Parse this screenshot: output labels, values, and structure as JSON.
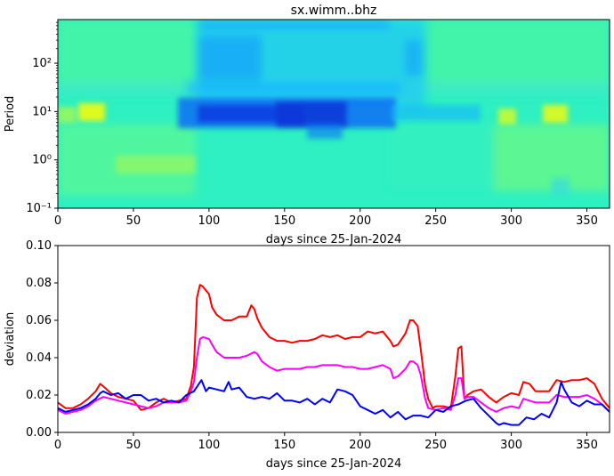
{
  "title": "sx.wimm..bhz",
  "chart_data": [
    {
      "type": "heatmap",
      "title": "sx.wimm..bhz",
      "xlabel": "days since 25-Jan-2024",
      "ylabel": "Period",
      "xlim": [
        0,
        365
      ],
      "ylim": [
        0.1,
        800
      ],
      "yscale": "log",
      "x_ticks": [
        0,
        50,
        100,
        150,
        200,
        250,
        300,
        350
      ],
      "y_ticks": [
        0.1,
        1,
        10,
        100
      ],
      "y_tick_labels": [
        "10⁻¹",
        "10⁰",
        "10¹",
        "10²"
      ],
      "colormap": "jet-like (low = blue, mid = cyan/green, high = yellow)",
      "features": [
        {
          "days": [
            92,
            242
          ],
          "periods": [
            35,
            800
          ],
          "level": "lower (blue-cyan)"
        },
        {
          "days": [
            82,
            220
          ],
          "periods": [
            4,
            20
          ],
          "level": "lowest (deep blue)"
        },
        {
          "days": [
            18,
            30
          ],
          "periods": [
            6,
            14
          ],
          "level": "high (yellow)"
        },
        {
          "days": [
            292,
            300
          ],
          "periods": [
            5,
            12
          ],
          "level": "high (yellow)"
        },
        {
          "days": [
            320,
            335
          ],
          "periods": [
            6,
            14
          ],
          "level": "high (yellow)"
        }
      ]
    },
    {
      "type": "line",
      "xlabel": "days since 25-Jan-2024",
      "ylabel": "deviation",
      "xlim": [
        0,
        365
      ],
      "ylim": [
        0,
        0.1
      ],
      "x_ticks": [
        0,
        50,
        100,
        150,
        200,
        250,
        300,
        350
      ],
      "y_ticks": [
        0.0,
        0.02,
        0.04,
        0.06,
        0.08,
        0.1
      ],
      "y_tick_labels": [
        "0.00",
        "0.02",
        "0.04",
        "0.06",
        "0.08",
        "0.10"
      ],
      "grid": false,
      "legend": "none",
      "series": [
        {
          "color": "#ff0000",
          "x": [
            0,
            5,
            10,
            15,
            20,
            25,
            28,
            31,
            35,
            40,
            45,
            50,
            55,
            60,
            65,
            70,
            75,
            80,
            85,
            88,
            90,
            92,
            94,
            96,
            100,
            102,
            105,
            110,
            115,
            120,
            125,
            128,
            130,
            132,
            135,
            140,
            145,
            150,
            155,
            160,
            165,
            170,
            175,
            180,
            185,
            190,
            195,
            200,
            205,
            210,
            215,
            220,
            222,
            225,
            230,
            233,
            235,
            238,
            240,
            243,
            245,
            248,
            250,
            255,
            260,
            263,
            265,
            267,
            269,
            271,
            275,
            280,
            285,
            290,
            295,
            300,
            305,
            308,
            312,
            316,
            320,
            325,
            330,
            335,
            340,
            345,
            350,
            355,
            360,
            365
          ],
          "y": [
            0.016,
            0.013,
            0.013,
            0.015,
            0.018,
            0.022,
            0.026,
            0.024,
            0.021,
            0.019,
            0.018,
            0.017,
            0.012,
            0.013,
            0.016,
            0.018,
            0.016,
            0.017,
            0.018,
            0.025,
            0.035,
            0.072,
            0.079,
            0.078,
            0.074,
            0.067,
            0.063,
            0.06,
            0.06,
            0.062,
            0.062,
            0.068,
            0.066,
            0.061,
            0.056,
            0.051,
            0.049,
            0.049,
            0.048,
            0.049,
            0.049,
            0.05,
            0.052,
            0.051,
            0.052,
            0.05,
            0.051,
            0.051,
            0.054,
            0.053,
            0.054,
            0.049,
            0.046,
            0.047,
            0.053,
            0.06,
            0.06,
            0.057,
            0.045,
            0.025,
            0.018,
            0.013,
            0.014,
            0.014,
            0.013,
            0.03,
            0.045,
            0.046,
            0.018,
            0.02,
            0.022,
            0.023,
            0.019,
            0.016,
            0.019,
            0.021,
            0.02,
            0.027,
            0.026,
            0.022,
            0.022,
            0.022,
            0.028,
            0.027,
            0.028,
            0.028,
            0.029,
            0.026,
            0.018,
            0.013
          ]
        },
        {
          "color": "#ff00ff",
          "x": [
            0,
            5,
            10,
            15,
            20,
            25,
            30,
            35,
            40,
            45,
            50,
            55,
            60,
            65,
            70,
            75,
            80,
            85,
            88,
            90,
            92,
            94,
            96,
            100,
            102,
            105,
            110,
            115,
            120,
            125,
            130,
            132,
            135,
            140,
            145,
            150,
            155,
            160,
            165,
            170,
            175,
            180,
            185,
            190,
            195,
            200,
            205,
            210,
            215,
            220,
            222,
            225,
            230,
            233,
            235,
            238,
            240,
            243,
            245,
            250,
            255,
            260,
            263,
            265,
            267,
            269,
            271,
            275,
            280,
            285,
            290,
            295,
            300,
            305,
            308,
            312,
            316,
            320,
            325,
            330,
            335,
            340,
            345,
            350,
            355,
            360,
            365
          ],
          "y": [
            0.012,
            0.01,
            0.011,
            0.012,
            0.014,
            0.017,
            0.019,
            0.018,
            0.017,
            0.016,
            0.015,
            0.014,
            0.013,
            0.014,
            0.016,
            0.016,
            0.016,
            0.017,
            0.022,
            0.027,
            0.04,
            0.05,
            0.051,
            0.05,
            0.047,
            0.043,
            0.04,
            0.04,
            0.04,
            0.041,
            0.043,
            0.042,
            0.038,
            0.035,
            0.033,
            0.034,
            0.034,
            0.034,
            0.035,
            0.035,
            0.036,
            0.036,
            0.036,
            0.035,
            0.035,
            0.034,
            0.034,
            0.035,
            0.036,
            0.034,
            0.029,
            0.03,
            0.034,
            0.038,
            0.038,
            0.036,
            0.031,
            0.018,
            0.013,
            0.012,
            0.013,
            0.012,
            0.02,
            0.029,
            0.029,
            0.018,
            0.019,
            0.019,
            0.016,
            0.013,
            0.011,
            0.013,
            0.014,
            0.013,
            0.018,
            0.017,
            0.016,
            0.016,
            0.016,
            0.02,
            0.019,
            0.019,
            0.019,
            0.02,
            0.018,
            0.015,
            0.011
          ]
        },
        {
          "color": "#0000ff",
          "x": [
            0,
            5,
            10,
            15,
            20,
            25,
            28,
            30,
            35,
            40,
            45,
            50,
            55,
            60,
            65,
            70,
            75,
            80,
            85,
            90,
            95,
            98,
            100,
            105,
            110,
            113,
            115,
            120,
            125,
            130,
            135,
            140,
            145,
            150,
            155,
            160,
            165,
            170,
            175,
            180,
            185,
            190,
            195,
            200,
            205,
            210,
            215,
            220,
            225,
            230,
            235,
            240,
            245,
            250,
            255,
            260,
            265,
            270,
            275,
            280,
            285,
            290,
            292,
            295,
            300,
            305,
            310,
            315,
            320,
            325,
            330,
            333,
            335,
            340,
            345,
            350,
            355,
            360,
            365
          ],
          "y": [
            0.013,
            0.011,
            0.012,
            0.013,
            0.015,
            0.018,
            0.021,
            0.022,
            0.02,
            0.021,
            0.018,
            0.02,
            0.02,
            0.017,
            0.018,
            0.016,
            0.017,
            0.016,
            0.02,
            0.022,
            0.028,
            0.022,
            0.024,
            0.023,
            0.022,
            0.027,
            0.023,
            0.024,
            0.019,
            0.018,
            0.019,
            0.018,
            0.021,
            0.017,
            0.017,
            0.016,
            0.018,
            0.015,
            0.018,
            0.016,
            0.023,
            0.022,
            0.02,
            0.014,
            0.012,
            0.01,
            0.012,
            0.008,
            0.011,
            0.007,
            0.009,
            0.009,
            0.008,
            0.012,
            0.011,
            0.014,
            0.015,
            0.017,
            0.018,
            0.013,
            0.009,
            0.005,
            0.004,
            0.005,
            0.004,
            0.004,
            0.008,
            0.007,
            0.01,
            0.008,
            0.016,
            0.027,
            0.023,
            0.016,
            0.014,
            0.017,
            0.015,
            0.015,
            0.011
          ]
        }
      ]
    }
  ]
}
